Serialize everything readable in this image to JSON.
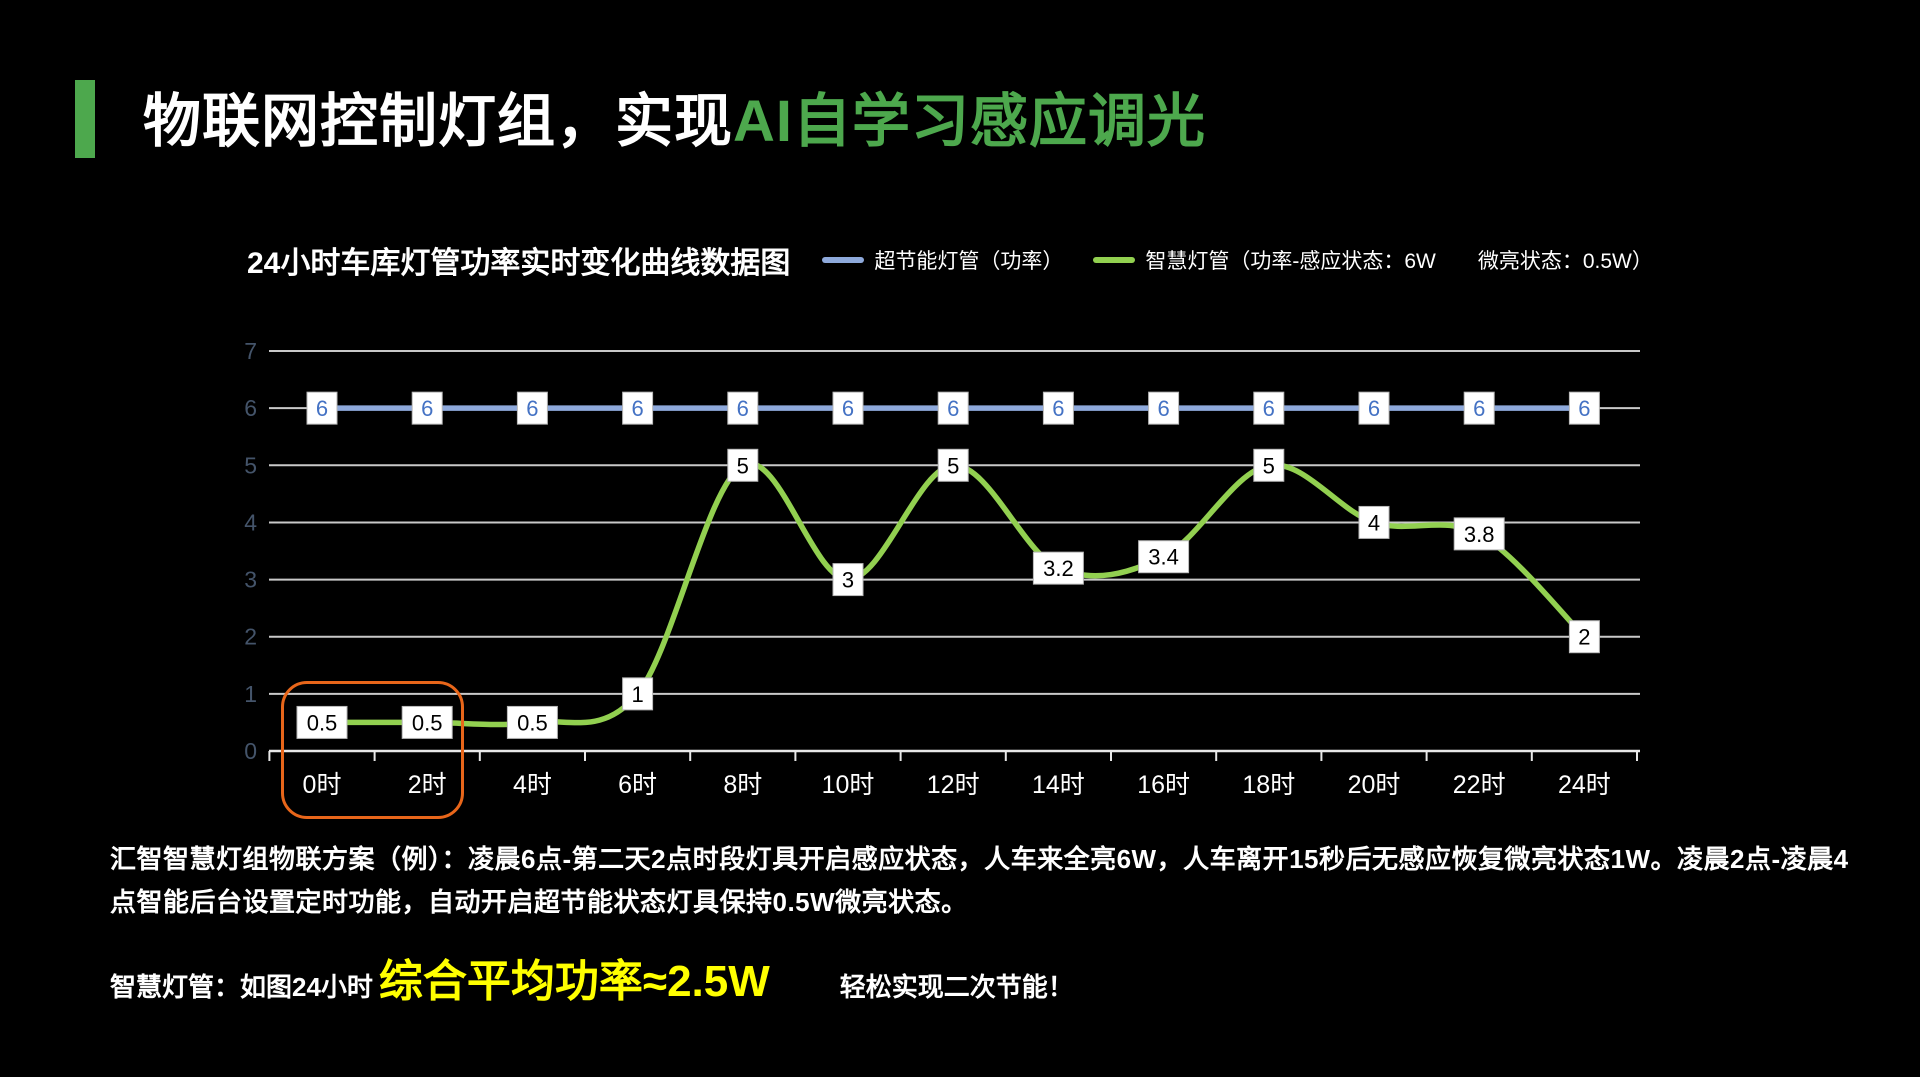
{
  "header": {
    "title_white": "物联网控制灯组，实现",
    "title_green": "AI自学习感应调光"
  },
  "chart": {
    "title": "24小时车库灯管功率实时变化曲线数据图",
    "legend": [
      {
        "label": "超节能灯管（功率）",
        "color": "#8EA9DB"
      },
      {
        "label": "智慧灯管（功率-感应状态：6W　　微亮状态：0.5W）",
        "color": "#92D050"
      }
    ]
  },
  "chart_data": {
    "type": "line",
    "title": "24小时车库灯管功率实时变化曲线数据图",
    "categories": [
      "0时",
      "2时",
      "4时",
      "6时",
      "8时",
      "10时",
      "12时",
      "14时",
      "16时",
      "18时",
      "20时",
      "22时",
      "24时"
    ],
    "series": [
      {
        "name": "超节能灯管（功率）",
        "color": "#8EA9DB",
        "label_text_color": "#4472C4",
        "smooth": false,
        "values": [
          6,
          6,
          6,
          6,
          6,
          6,
          6,
          6,
          6,
          6,
          6,
          6,
          6
        ]
      },
      {
        "name": "智慧灯管（功率-感应状态：6W　微亮状态：0.5W）",
        "color": "#92D050",
        "label_text_color": "#000000",
        "smooth": true,
        "values": [
          0.5,
          0.5,
          0.5,
          1,
          5,
          3,
          5,
          3.2,
          3.4,
          5,
          4,
          3.8,
          2
        ]
      }
    ],
    "ylim": [
      0,
      7
    ],
    "yticks": [
      0,
      1,
      2,
      3,
      4,
      5,
      6,
      7
    ],
    "grid": true,
    "data_labels": true,
    "legend_position": "top-right",
    "highlight": {
      "categories": [
        "0时",
        "2时"
      ],
      "color": "#E8661A"
    }
  },
  "description": "汇智智慧灯组物联方案（例）：凌晨6点-第二天2点时段灯具开启感应状态，人车来全亮6W，人车离开15秒后无感应恢复微亮状态1W。凌晨2点-凌晨4点智能后台设置定时功能，自动开启超节能状态灯具保持0.5W微亮状态。",
  "footer": {
    "prefix": "智慧灯管：如图24小时",
    "highlight": "综合平均功率≈2.5W",
    "suffix": "轻松实现二次节能！"
  },
  "colors": {
    "accent_green": "#4DA84D",
    "highlight_yellow": "#FFFF00",
    "axis_label": "#44546A",
    "gridline": "#C9C9C9",
    "axis_line": "#E8E8E8"
  }
}
